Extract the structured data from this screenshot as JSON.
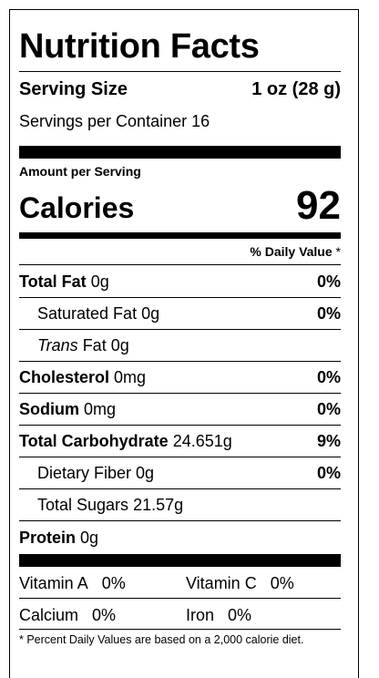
{
  "title": "Nutrition Facts",
  "serving": {
    "label": "Serving Size",
    "value": "1 oz (28 g)"
  },
  "servings_per_container": {
    "label": "Servings per Container",
    "value": "16"
  },
  "amount_per_serving": "Amount per Serving",
  "calories": {
    "label": "Calories",
    "value": "92"
  },
  "daily_value_header": {
    "text": "% Daily Value",
    "star": " *"
  },
  "nutrients": [
    {
      "name": "Total Fat",
      "amount": "0g",
      "dv": "0%"
    },
    {
      "name": "Saturated Fat",
      "amount": "0g",
      "dv": "0%"
    },
    {
      "name_italic": "Trans",
      "name_rest": " Fat",
      "amount": "0g",
      "dv": ""
    },
    {
      "name": "Cholesterol",
      "amount": "0mg",
      "dv": "0%"
    },
    {
      "name": "Sodium",
      "amount": "0mg",
      "dv": "0%"
    },
    {
      "name": "Total Carbohydrate",
      "amount": "24.651g",
      "dv": "9%"
    },
    {
      "name": "Dietary Fiber",
      "amount": "0g",
      "dv": "0%"
    },
    {
      "name": "Total Sugars",
      "amount": "21.57g",
      "dv": ""
    },
    {
      "name": "Protein",
      "amount": "0g",
      "dv": ""
    }
  ],
  "vitamins": [
    {
      "name": "Vitamin A",
      "value": "0%"
    },
    {
      "name": "Vitamin C",
      "value": "0%"
    },
    {
      "name": "Calcium",
      "value": "0%"
    },
    {
      "name": "Iron",
      "value": "0%"
    }
  ],
  "footnote": "* Percent Daily Values are based on a 2,000 calorie diet."
}
